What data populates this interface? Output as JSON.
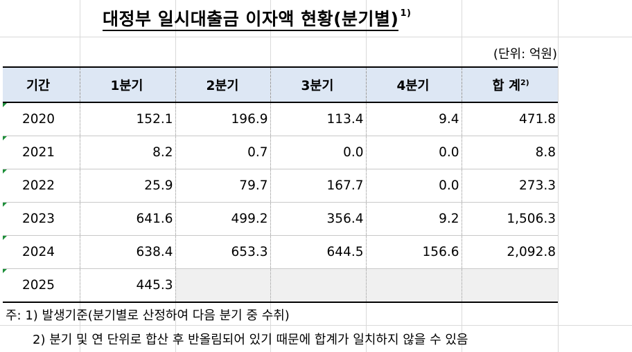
{
  "title": "대정부 일시대출금 이자액 현황(분기별)",
  "title_note": "1)",
  "unit": "(단위: 억원)",
  "table": {
    "headers": [
      "기간",
      "1분기",
      "2분기",
      "3분기",
      "4분기",
      "합 계"
    ],
    "total_note": "2)",
    "rows": [
      [
        "2020",
        "152.1",
        "196.9",
        "113.4",
        "9.4",
        "471.8"
      ],
      [
        "2021",
        "8.2",
        "0.7",
        "0.0",
        "0.0",
        "8.8"
      ],
      [
        "2022",
        "25.9",
        "79.7",
        "167.7",
        "0.0",
        "273.3"
      ],
      [
        "2023",
        "641.6",
        "499.2",
        "356.4",
        "9.2",
        "1,506.3"
      ],
      [
        "2024",
        "638.4",
        "653.3",
        "644.5",
        "156.6",
        "2,092.8"
      ],
      [
        "2025",
        "445.3",
        "",
        "",
        "",
        ""
      ]
    ]
  },
  "notes": [
    "주: 1) 발생기준(분기별로 산정하여 다음 분기 중 수취)",
    "2) 분기 및 연 단위로 합산 후 반올림되어 있기 때문에 합계가 일치하지 않을 수 있음"
  ]
}
